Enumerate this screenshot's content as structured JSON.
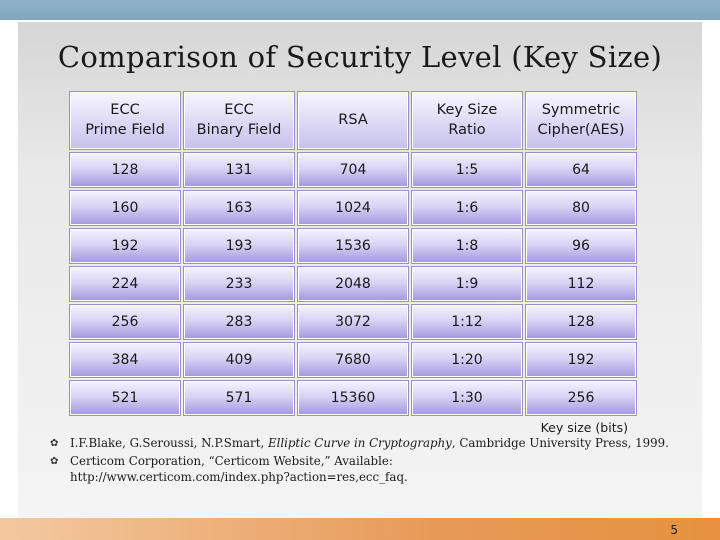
{
  "title": "Comparison of Security Level (Key Size)",
  "table": {
    "headers": [
      "ECC\nPrime Field",
      "ECC\nBinary Field",
      "RSA",
      "Key Size\nRatio",
      "Symmetric\nCipher(AES)"
    ],
    "rows": [
      [
        "128",
        "131",
        "704",
        "1:5",
        "64"
      ],
      [
        "160",
        "163",
        "1024",
        "1:6",
        "80"
      ],
      [
        "192",
        "193",
        "1536",
        "1:8",
        "96"
      ],
      [
        "224",
        "233",
        "2048",
        "1:9",
        "112"
      ],
      [
        "256",
        "283",
        "3072",
        "1:12",
        "128"
      ],
      [
        "384",
        "409",
        "7680",
        "1:20",
        "192"
      ],
      [
        "521",
        "571",
        "15360",
        "1:30",
        "256"
      ]
    ]
  },
  "caption": "Key size (bits)",
  "references": [
    {
      "before": "I.F.Blake, G.Seroussi, N.P.Smart, ",
      "italic": "Elliptic Curve in Cryptography",
      "after": ", Cambridge University Press, 1999."
    },
    {
      "line1": "Certicom Corporation, “Certicom Website,” Available:",
      "line2": "http://www.certicom.com/index.php?action=res,ecc_faq."
    }
  ],
  "page_number": "5",
  "colors": {
    "top_bar": "#8fb3c9",
    "bottom_bar": "#e79a58",
    "cell_purple": "#a59ae0"
  }
}
